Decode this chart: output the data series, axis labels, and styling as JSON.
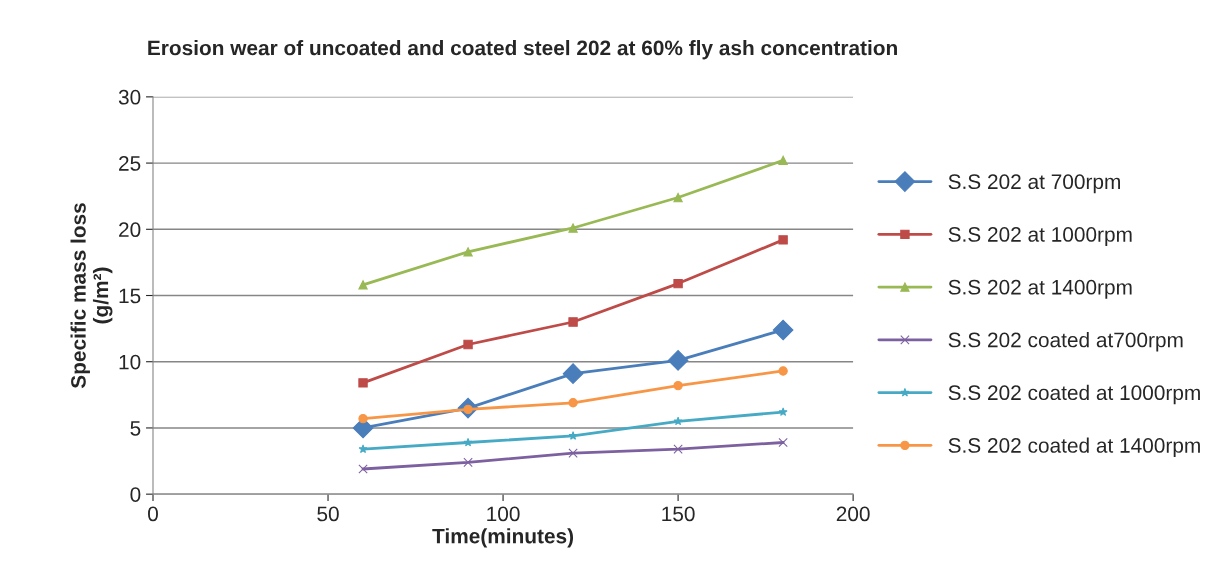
{
  "chart_data": {
    "type": "line",
    "title": "Erosion wear of uncoated and coated steel 202 at 60% fly ash concentration",
    "xlabel": "Time(minutes)",
    "ylabel": "Specific mass loss\n(g/m²)",
    "x": [
      60,
      90,
      120,
      150,
      180
    ],
    "series": [
      {
        "name": "S.S 202 at 700rpm",
        "color": "#4a7ebb",
        "marker": "diamond",
        "values": [
          5.0,
          6.5,
          9.1,
          10.1,
          12.4
        ]
      },
      {
        "name": "S.S 202 at 1000rpm",
        "color": "#be4b48",
        "marker": "square",
        "values": [
          8.4,
          11.3,
          13.0,
          15.9,
          19.2
        ]
      },
      {
        "name": "S.S 202 at 1400rpm",
        "color": "#98b954",
        "marker": "triangle",
        "values": [
          15.8,
          18.3,
          20.1,
          22.4,
          25.2
        ]
      },
      {
        "name": "S.S 202 coated at700rpm",
        "color": "#7d60a0",
        "marker": "cross",
        "values": [
          1.9,
          2.4,
          3.1,
          3.4,
          3.9
        ]
      },
      {
        "name": "S.S 202 coated at 1000rpm",
        "color": "#46aac5",
        "marker": "star",
        "values": [
          3.4,
          3.9,
          4.4,
          5.5,
          6.2
        ]
      },
      {
        "name": "S.S 202 coated at 1400rpm",
        "color": "#f79646",
        "marker": "circle",
        "values": [
          5.7,
          6.4,
          6.9,
          8.2,
          9.3
        ]
      }
    ],
    "xlim": [
      0,
      200
    ],
    "xticks": [
      0,
      50,
      100,
      150,
      200
    ],
    "ylim": [
      0,
      30
    ],
    "yticks": [
      0,
      5,
      10,
      15,
      20,
      25,
      30
    ],
    "grid": "y",
    "legend": "right",
    "line_style": "solid"
  }
}
